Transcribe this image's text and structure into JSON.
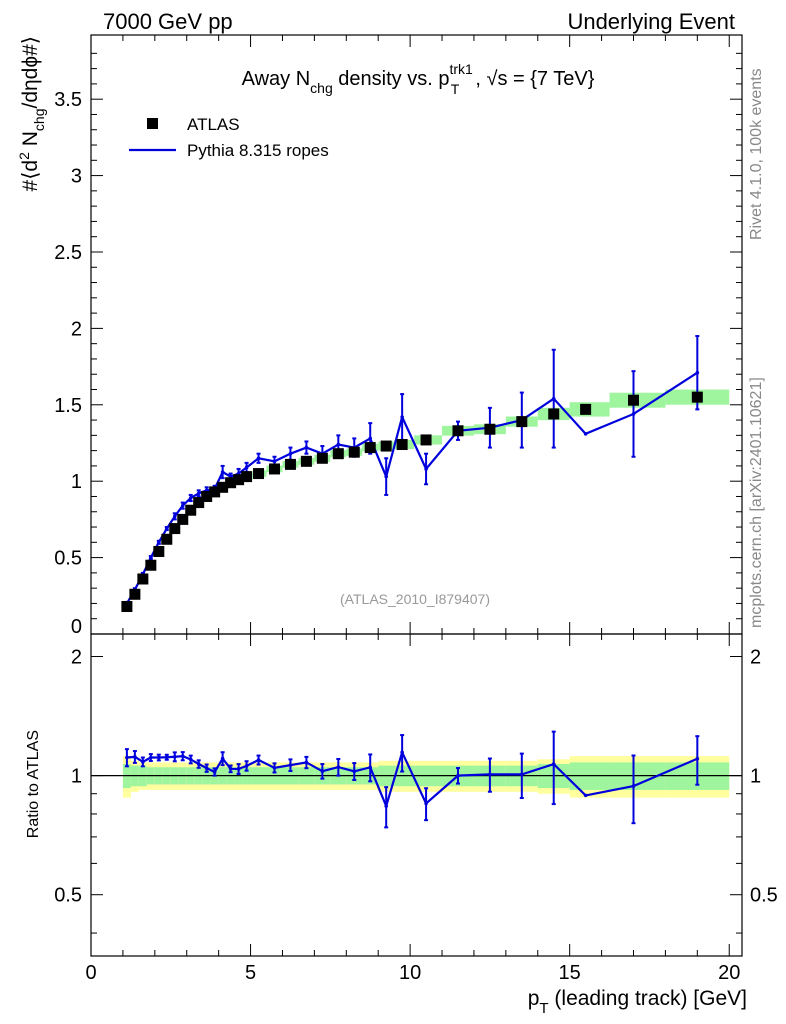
{
  "header": {
    "left": "7000 GeV pp",
    "right": "Underlying Event"
  },
  "side_labels": {
    "rivet": "Rivet 4.1.0,  100k events",
    "mcplots": "mcplots.cern.ch [arXiv:2401.10621]"
  },
  "colors": {
    "mc": "#0000dd",
    "data": "#000000",
    "band_inner": "#9ef59e",
    "band_outer": "#ffff9e",
    "watermark": "#999999",
    "side_text": "#888888"
  },
  "chart_data": {
    "type": "scatter",
    "title": {
      "pre": "Away N",
      "sub1": "chg",
      "mid": " density vs. p",
      "sup2": "trk1",
      "sub2": "T",
      "post": ", √s = {7 TeV}"
    },
    "ylabel": {
      "pre": "#⟨d",
      "sup": "2",
      "mid": " N",
      "sub": "chg",
      "post": "/dηdϕ#⟩"
    },
    "xlabel": {
      "pre": "p",
      "sub": "T",
      "post": " (leading track) [GeV]"
    },
    "ratio_ylabel": "Ratio to ATLAS",
    "watermark": "(ATLAS_2010_I879407)",
    "xlim": [
      0,
      20.4
    ],
    "ylim": [
      0,
      3.92
    ],
    "ratio_ylim": [
      0.35,
      2.28
    ],
    "x_ticks": [
      "0",
      "5",
      "10",
      "15",
      "20"
    ],
    "y_ticks": [
      "0",
      "0.5",
      "1",
      "1.5",
      "2",
      "2.5",
      "3",
      "3.5"
    ],
    "ratio_ticks": [
      "0.5",
      "1",
      "2"
    ],
    "legend": [
      {
        "label": "ATLAS",
        "style": "marker"
      },
      {
        "label": "Pythia 8.315 ropes",
        "style": "line"
      }
    ],
    "x": [
      1.125,
      1.375,
      1.625,
      1.875,
      2.125,
      2.375,
      2.625,
      2.875,
      3.125,
      3.375,
      3.625,
      3.875,
      4.125,
      4.375,
      4.625,
      4.875,
      5.25,
      5.75,
      6.25,
      6.75,
      7.25,
      7.75,
      8.25,
      8.75,
      9.25,
      9.75,
      10.5,
      11.5,
      12.5,
      13.5,
      14.5,
      15.5,
      17.0,
      19.0
    ],
    "series": [
      {
        "name": "ATLAS",
        "values": [
          0.18,
          0.26,
          0.36,
          0.45,
          0.54,
          0.62,
          0.69,
          0.75,
          0.81,
          0.86,
          0.9,
          0.93,
          0.96,
          0.99,
          1.01,
          1.03,
          1.05,
          1.08,
          1.11,
          1.13,
          1.15,
          1.18,
          1.19,
          1.22,
          1.23,
          1.24,
          1.27,
          1.33,
          1.34,
          1.39,
          1.44,
          1.47,
          1.53,
          1.55
        ],
        "band_inner": [
          0.07,
          0.06,
          0.06,
          0.05,
          0.05,
          0.05,
          0.05,
          0.05,
          0.05,
          0.05,
          0.05,
          0.05,
          0.05,
          0.05,
          0.05,
          0.05,
          0.05,
          0.05,
          0.05,
          0.05,
          0.05,
          0.05,
          0.05,
          0.05,
          0.06,
          0.06,
          0.06,
          0.06,
          0.06,
          0.06,
          0.07,
          0.08,
          0.08,
          0.08
        ],
        "band_outer": [
          0.12,
          0.09,
          0.08,
          0.08,
          0.08,
          0.08,
          0.08,
          0.08,
          0.08,
          0.08,
          0.08,
          0.08,
          0.08,
          0.08,
          0.08,
          0.08,
          0.08,
          0.08,
          0.08,
          0.08,
          0.08,
          0.08,
          0.08,
          0.08,
          0.09,
          0.09,
          0.09,
          0.09,
          0.09,
          0.09,
          0.1,
          0.12,
          0.12,
          0.12
        ]
      },
      {
        "name": "Pythia 8.315 ropes",
        "values": [
          0.2,
          0.29,
          0.39,
          0.5,
          0.6,
          0.69,
          0.77,
          0.84,
          0.89,
          0.92,
          0.94,
          0.95,
          1.06,
          1.03,
          1.05,
          1.09,
          1.15,
          1.13,
          1.18,
          1.22,
          1.18,
          1.24,
          1.22,
          1.28,
          1.03,
          1.42,
          1.08,
          1.33,
          1.35,
          1.4,
          1.54,
          1.31,
          1.44,
          1.71
        ],
        "errors": [
          0.01,
          0.01,
          0.01,
          0.01,
          0.01,
          0.01,
          0.02,
          0.02,
          0.02,
          0.02,
          0.02,
          0.02,
          0.04,
          0.02,
          0.03,
          0.03,
          0.03,
          0.03,
          0.04,
          0.04,
          0.05,
          0.06,
          0.06,
          0.1,
          0.12,
          0.15,
          0.1,
          0.06,
          0.13,
          0.18,
          0.32,
          0.0,
          0.28,
          0.24
        ]
      }
    ]
  }
}
